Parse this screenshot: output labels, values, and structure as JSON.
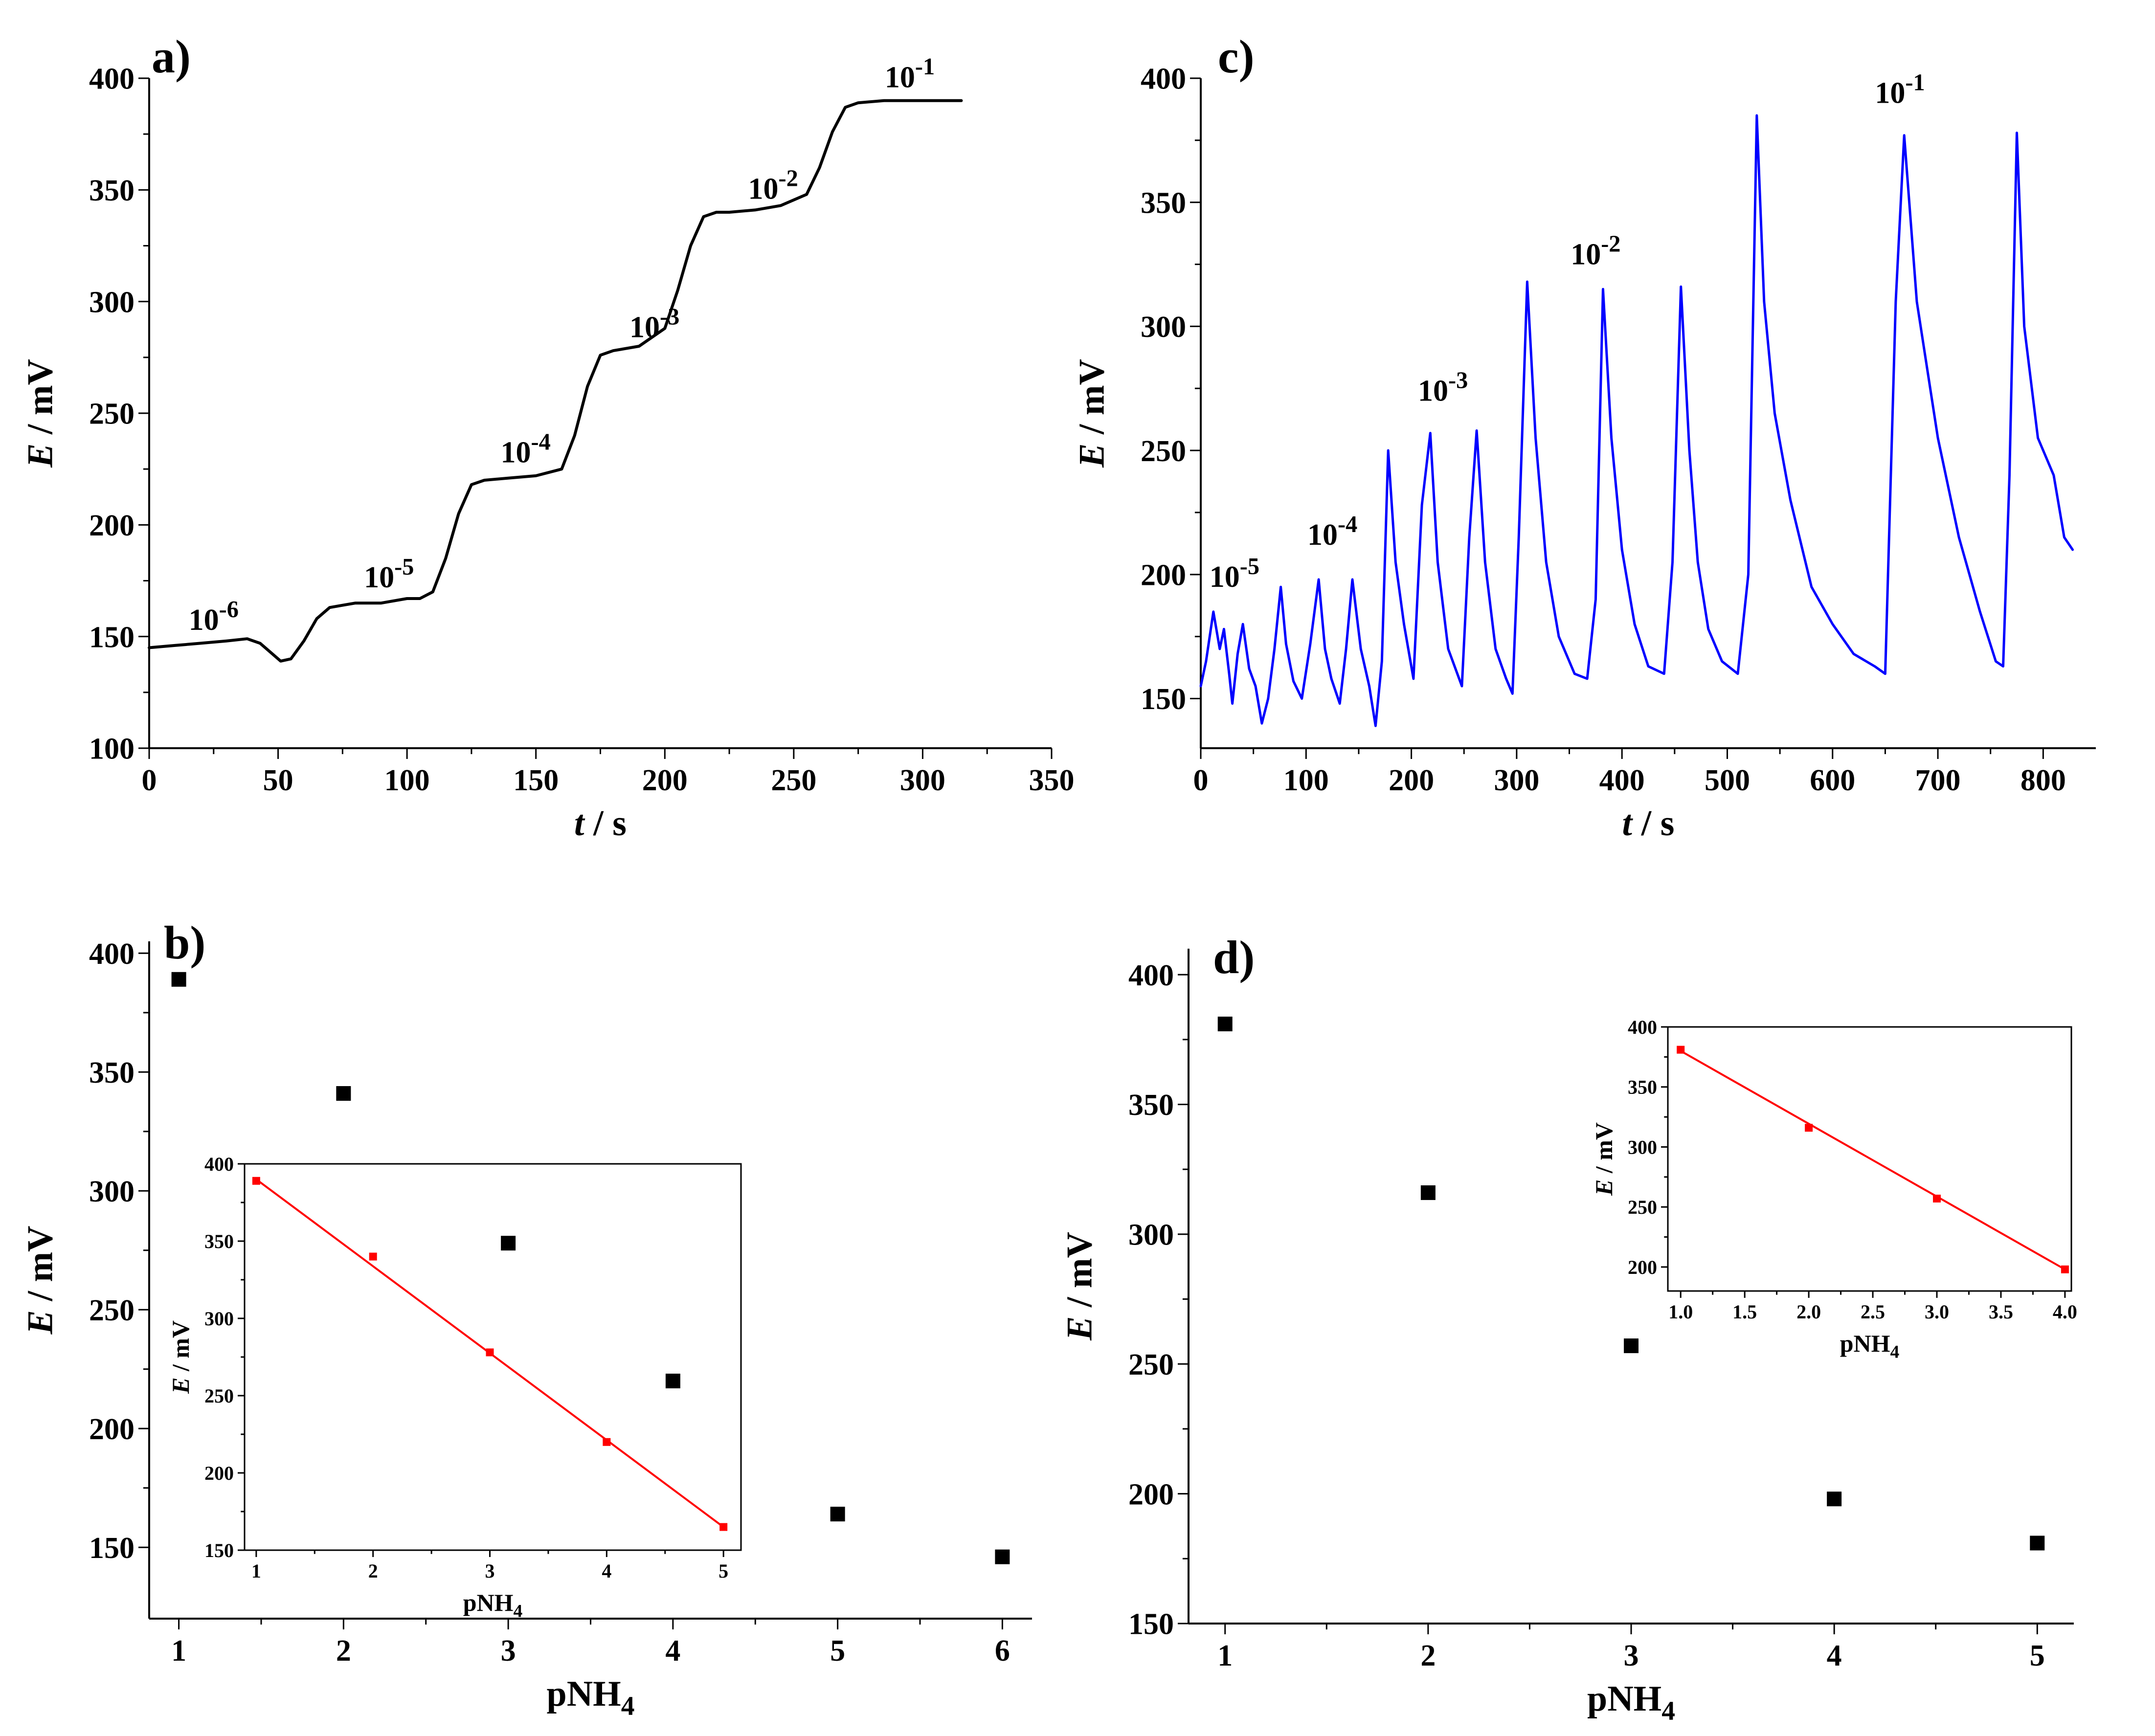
{
  "chart_data": [
    {
      "id": "a",
      "panel_label": "a)",
      "type": "line",
      "color": "#000000",
      "xlabel_var": "t",
      "xlabel_unit": " / s",
      "ylabel_var": "E",
      "ylabel_unit": " / mV",
      "xlim": [
        0,
        350
      ],
      "ylim": [
        100,
        400
      ],
      "xticks": [
        0,
        50,
        100,
        150,
        200,
        250,
        300,
        350
      ],
      "yticks": [
        100,
        150,
        200,
        250,
        300,
        350,
        400
      ],
      "series": [
        {
          "name": "potential",
          "x": [
            0,
            10,
            20,
            30,
            38,
            43,
            47,
            51,
            55,
            60,
            65,
            70,
            75,
            80,
            90,
            100,
            105,
            110,
            115,
            120,
            125,
            130,
            140,
            150,
            160,
            165,
            170,
            175,
            180,
            190,
            200,
            205,
            210,
            215,
            220,
            225,
            235,
            245,
            255,
            260,
            265,
            270,
            275,
            285,
            300,
            315
          ],
          "y": [
            145,
            146,
            147,
            148,
            149,
            147,
            143,
            139,
            140,
            148,
            158,
            163,
            164,
            165,
            165,
            167,
            167,
            170,
            185,
            205,
            218,
            220,
            221,
            222,
            225,
            240,
            262,
            276,
            278,
            280,
            288,
            305,
            325,
            338,
            340,
            340,
            341,
            343,
            348,
            360,
            376,
            387,
            389,
            390,
            390,
            390
          ]
        }
      ],
      "annotations": [
        {
          "base": "10",
          "exp": "-6",
          "x": 25,
          "y": 153
        },
        {
          "base": "10",
          "exp": "-5",
          "x": 93,
          "y": 172
        },
        {
          "base": "10",
          "exp": "-4",
          "x": 146,
          "y": 228
        },
        {
          "base": "10",
          "exp": "-3",
          "x": 196,
          "y": 284
        },
        {
          "base": "10",
          "exp": "-2",
          "x": 242,
          "y": 346
        },
        {
          "base": "10",
          "exp": "-1",
          "x": 295,
          "y": 396
        }
      ]
    },
    {
      "id": "c",
      "panel_label": "c)",
      "type": "line",
      "color": "#0000ff",
      "xlabel_var": "t",
      "xlabel_unit": " / s",
      "ylabel_var": "E",
      "ylabel_unit": " / mV",
      "xlim": [
        0,
        850
      ],
      "ylim": [
        130,
        400
      ],
      "xticks": [
        0,
        100,
        200,
        300,
        400,
        500,
        600,
        700,
        800
      ],
      "yticks": [
        150,
        200,
        250,
        300,
        350,
        400
      ],
      "series": [
        {
          "name": "potential",
          "x": [
            0,
            5,
            12,
            18,
            22,
            27,
            30,
            35,
            40,
            46,
            52,
            58,
            64,
            70,
            76,
            81,
            88,
            96,
            104,
            112,
            118,
            124,
            132,
            138,
            144,
            152,
            160,
            166,
            172,
            178,
            185,
            193,
            202,
            210,
            218,
            225,
            235,
            248,
            255,
            262,
            270,
            280,
            290,
            296,
            302,
            310,
            318,
            328,
            340,
            355,
            367,
            375,
            382,
            390,
            400,
            412,
            425,
            440,
            448,
            456,
            464,
            472,
            482,
            495,
            510,
            520,
            528,
            535,
            545,
            560,
            580,
            600,
            620,
            640,
            650,
            660,
            668,
            680,
            700,
            720,
            740,
            755,
            762,
            768,
            775,
            782,
            795,
            810,
            820,
            828
          ],
          "y": [
            155,
            165,
            185,
            170,
            178,
            160,
            148,
            168,
            180,
            162,
            155,
            140,
            150,
            170,
            195,
            172,
            157,
            150,
            172,
            198,
            170,
            158,
            148,
            170,
            198,
            170,
            155,
            139,
            165,
            250,
            205,
            180,
            158,
            228,
            257,
            205,
            170,
            155,
            215,
            258,
            205,
            170,
            158,
            152,
            215,
            318,
            255,
            205,
            175,
            160,
            158,
            190,
            315,
            255,
            210,
            180,
            163,
            160,
            205,
            316,
            250,
            205,
            178,
            165,
            160,
            200,
            385,
            310,
            265,
            230,
            195,
            180,
            168,
            163,
            160,
            310,
            377,
            310,
            255,
            215,
            185,
            165,
            163,
            240,
            378,
            300,
            255,
            240,
            215,
            210
          ]
        }
      ],
      "annotations": [
        {
          "base": "10",
          "exp": "-5",
          "x": 32,
          "y": 195
        },
        {
          "base": "10",
          "exp": "-4",
          "x": 125,
          "y": 212
        },
        {
          "base": "10",
          "exp": "-3",
          "x": 230,
          "y": 270
        },
        {
          "base": "10",
          "exp": "-2",
          "x": 375,
          "y": 325
        },
        {
          "base": "10",
          "exp": "-1",
          "x": 664,
          "y": 390
        }
      ]
    },
    {
      "id": "b",
      "panel_label": "b)",
      "type": "scatter",
      "color": "#000000",
      "xlabel_var": "pNH",
      "xlabel_sub": "4",
      "ylabel_var": "E",
      "ylabel_unit": " / mV",
      "xlim": [
        0.82,
        6.18
      ],
      "ylim": [
        120,
        405
      ],
      "xticks": [
        1,
        2,
        3,
        4,
        5,
        6
      ],
      "yticks": [
        150,
        200,
        250,
        300,
        350,
        400
      ],
      "series": [
        {
          "name": "data",
          "x": [
            1,
            2,
            3,
            4,
            5,
            6
          ],
          "y": [
            389,
            341,
            278,
            220,
            164,
            146
          ]
        }
      ],
      "inset": {
        "type": "scatter",
        "color": "#ff0000",
        "xlabel_var": "pNH",
        "xlabel_sub": "4",
        "ylabel_var": "E",
        "ylabel_unit": " / mV",
        "xlim": [
          0.9,
          5.15
        ],
        "ylim": [
          150,
          400
        ],
        "xticks": [
          1,
          2,
          3,
          4,
          5
        ],
        "xtick_labels": [
          "1",
          "2",
          "3",
          "4",
          "5"
        ],
        "yticks": [
          150,
          200,
          250,
          300,
          350,
          400
        ],
        "series": [
          {
            "name": "calibration",
            "x": [
              1,
              2,
              3,
              4,
              5
            ],
            "y": [
              389,
              340,
              278,
              220,
              165
            ]
          }
        ],
        "fit": {
          "x": [
            1,
            5
          ],
          "y": [
            390,
            165
          ]
        }
      }
    },
    {
      "id": "d",
      "panel_label": "d)",
      "type": "scatter",
      "color": "#000000",
      "xlabel_var": "pNH",
      "xlabel_sub": "4",
      "ylabel_var": "E",
      "ylabel_unit": " / mV",
      "xlim": [
        0.82,
        5.18
      ],
      "ylim": [
        150,
        410
      ],
      "xticks": [
        1,
        2,
        3,
        4,
        5
      ],
      "yticks": [
        150,
        200,
        250,
        300,
        350,
        400
      ],
      "series": [
        {
          "name": "data",
          "x": [
            1,
            2,
            3,
            4,
            5
          ],
          "y": [
            381,
            316,
            257,
            198,
            181
          ]
        }
      ],
      "inset": {
        "type": "scatter",
        "color": "#ff0000",
        "xlabel_var": "pNH",
        "xlabel_sub": "4",
        "ylabel_var": "E",
        "ylabel_unit": " / mV",
        "xlim": [
          0.9,
          4.05
        ],
        "ylim": [
          180,
          400
        ],
        "xticks": [
          1,
          1.5,
          2,
          2.5,
          3,
          3.5,
          4
        ],
        "xtick_labels": [
          "1.0",
          "1.5",
          "2.0",
          "2.5",
          "3.0",
          "3.5",
          "4.0"
        ],
        "yticks": [
          200,
          250,
          300,
          350,
          400
        ],
        "series": [
          {
            "name": "calibration",
            "x": [
              1,
              2,
              3,
              4
            ],
            "y": [
              381,
              316,
              257,
              198
            ]
          }
        ],
        "fit": {
          "x": [
            1,
            4
          ],
          "y": [
            380,
            198
          ]
        }
      }
    }
  ]
}
